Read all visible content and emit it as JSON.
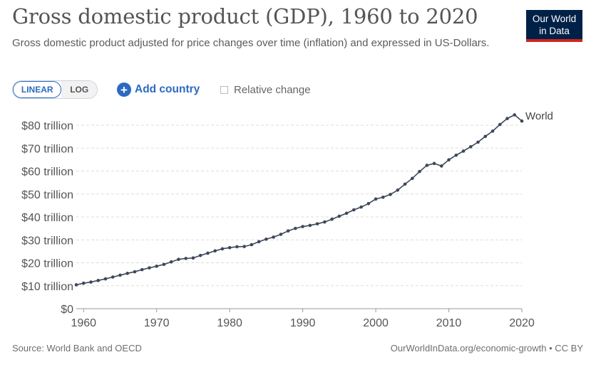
{
  "header": {
    "title": "Gross domestic product (GDP), 1960 to 2020",
    "subtitle": "Gross domestic product adjusted for price changes over time (inflation) and expressed in US-Dollars."
  },
  "logo": {
    "line1": "Our World",
    "line2": "in Data",
    "bg_color": "#002147",
    "accent_color": "#ce261e"
  },
  "controls": {
    "linear_label": "LINEAR",
    "log_label": "LOG",
    "selected_scale": "LINEAR",
    "add_country_label": "Add country",
    "relative_change_label": "Relative change",
    "relative_change_checked": false,
    "accent_color": "#2c6ac0"
  },
  "footer": {
    "source": "Source: World Bank and OECD",
    "attribution": "OurWorldInData.org/economic-growth • CC BY"
  },
  "chart_data": {
    "type": "line",
    "title": "Gross domestic product (GDP), 1960 to 2020",
    "xlim": [
      1959,
      2020
    ],
    "ylim": [
      0,
      85
    ],
    "x_ticks": [
      1960,
      1970,
      1980,
      1990,
      2000,
      2010,
      2020
    ],
    "y_ticks": [
      0,
      10,
      20,
      30,
      40,
      50,
      60,
      70,
      80
    ],
    "y_tick_labels": [
      "$0",
      "$10 trillion",
      "$20 trillion",
      "$30 trillion",
      "$40 trillion",
      "$50 trillion",
      "$60 trillion",
      "$70 trillion",
      "$80 trillion"
    ],
    "grid": "horizontal dashed",
    "series": [
      {
        "name": "World",
        "color": "#3d4859",
        "x": [
          1959,
          1960,
          1961,
          1962,
          1963,
          1964,
          1965,
          1966,
          1967,
          1968,
          1969,
          1970,
          1971,
          1972,
          1973,
          1974,
          1975,
          1976,
          1977,
          1978,
          1979,
          1980,
          1981,
          1982,
          1983,
          1984,
          1985,
          1986,
          1987,
          1988,
          1989,
          1990,
          1991,
          1992,
          1993,
          1994,
          1995,
          1996,
          1997,
          1998,
          1999,
          2000,
          2001,
          2002,
          2003,
          2004,
          2005,
          2006,
          2007,
          2008,
          2009,
          2010,
          2011,
          2012,
          2013,
          2014,
          2015,
          2016,
          2017,
          2018,
          2019,
          2020
        ],
        "values": [
          10.4,
          11.1,
          11.6,
          12.3,
          13.0,
          13.8,
          14.6,
          15.4,
          16.1,
          17.0,
          17.8,
          18.5,
          19.3,
          20.4,
          21.5,
          21.9,
          22.1,
          23.2,
          24.2,
          25.2,
          26.1,
          26.6,
          27.0,
          27.1,
          27.9,
          29.2,
          30.3,
          31.2,
          32.4,
          33.9,
          35.0,
          35.8,
          36.3,
          37.0,
          37.8,
          39.0,
          40.3,
          41.6,
          43.1,
          44.3,
          45.8,
          47.8,
          48.6,
          49.8,
          51.7,
          54.3,
          56.8,
          59.8,
          62.5,
          63.3,
          62.2,
          64.9,
          66.9,
          68.7,
          70.6,
          72.6,
          75.1,
          77.4,
          80.3,
          82.9,
          84.5,
          81.8
        ]
      }
    ]
  }
}
